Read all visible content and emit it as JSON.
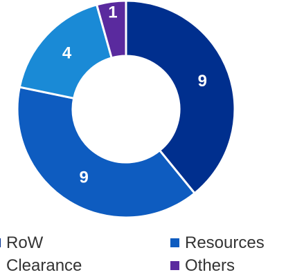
{
  "chart_data": {
    "type": "donut",
    "categories": [
      "RoW Clearance",
      "Resources",
      null,
      "Others"
    ],
    "values": [
      9,
      9,
      4,
      1
    ],
    "colors": [
      "#002f8e",
      "#0e5cc0",
      "#1a8ad6",
      "#5a2a9e"
    ],
    "legend": "bottom"
  }
}
